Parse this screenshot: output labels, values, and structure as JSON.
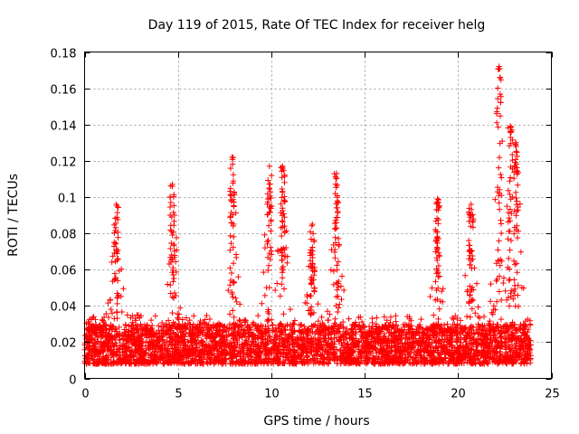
{
  "chart_data": {
    "type": "scatter",
    "title": "Day 119 of 2015, Rate Of TEC Index for receiver helg",
    "xlabel": "GPS time / hours",
    "ylabel": "ROTI / TECUs",
    "xlim": [
      0,
      25
    ],
    "ylim": [
      0,
      0.18
    ],
    "xticks": [
      0,
      5,
      10,
      15,
      20,
      25
    ],
    "xtick_labels": [
      "0",
      "5",
      "10",
      "15",
      "20",
      "25"
    ],
    "yticks": [
      0,
      0.02,
      0.04,
      0.06,
      0.08,
      0.1,
      0.12,
      0.14,
      0.16,
      0.18
    ],
    "ytick_labels": [
      "0",
      "0.02",
      "0.04",
      "0.06",
      "0.08",
      "0.1",
      "0.12",
      "0.14",
      "0.16",
      "0.18"
    ],
    "grid": true,
    "marker": "+",
    "color": "#ff0000",
    "time_range_hours": [
      0,
      23.9
    ],
    "baseline_band": [
      0.008,
      0.03
    ],
    "peaks": [
      {
        "x": 1.7,
        "y": 0.096
      },
      {
        "x": 4.7,
        "y": 0.107
      },
      {
        "x": 7.9,
        "y": 0.122
      },
      {
        "x": 9.9,
        "y": 0.117
      },
      {
        "x": 10.6,
        "y": 0.117
      },
      {
        "x": 12.2,
        "y": 0.085
      },
      {
        "x": 13.5,
        "y": 0.113
      },
      {
        "x": 18.9,
        "y": 0.099
      },
      {
        "x": 20.7,
        "y": 0.096
      },
      {
        "x": 22.2,
        "y": 0.172
      },
      {
        "x": 22.8,
        "y": 0.139
      },
      {
        "x": 23.1,
        "y": 0.13
      }
    ]
  }
}
